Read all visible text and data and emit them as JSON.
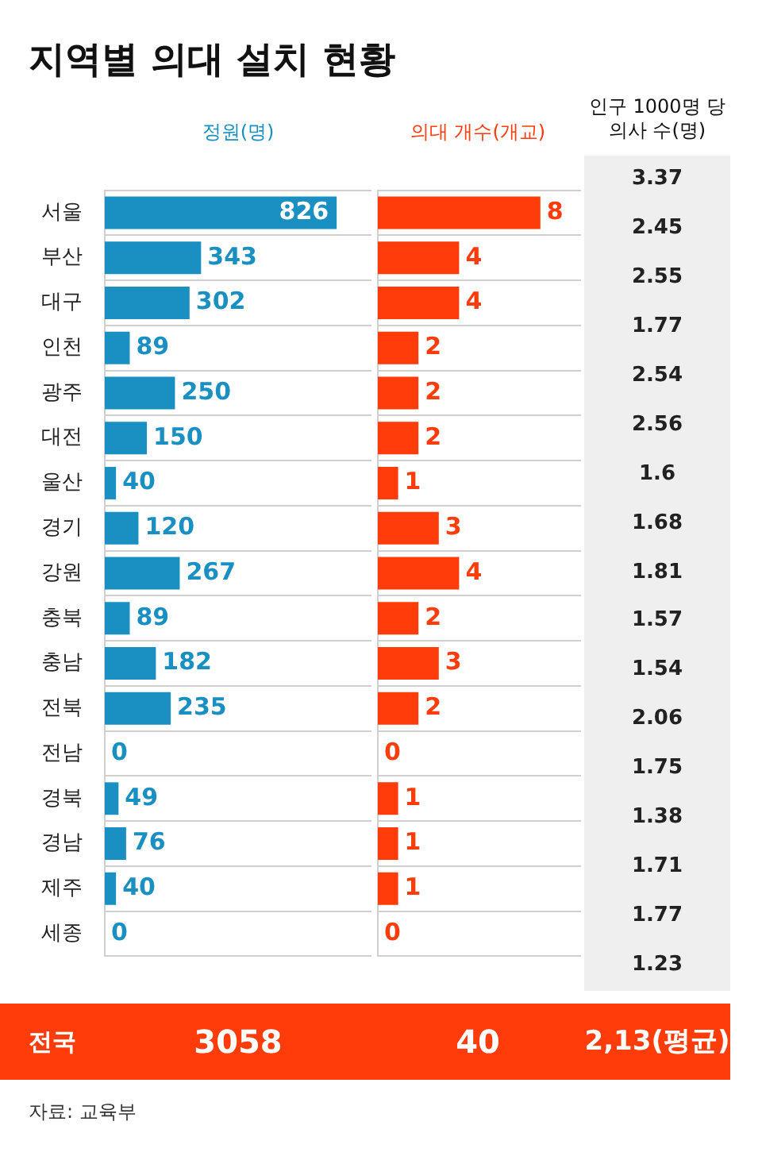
{
  "chart_data": [
    {
      "type": "bar",
      "orientation": "horizontal",
      "title": "지역별 의대 설치 현황",
      "subtitle": "정원(명)",
      "categories": [
        "서울",
        "부산",
        "대구",
        "인천",
        "광주",
        "대전",
        "울산",
        "경기",
        "강원",
        "충북",
        "충남",
        "전북",
        "전남",
        "경북",
        "경남",
        "제주",
        "세종"
      ],
      "values": [
        826,
        343,
        302,
        89,
        250,
        150,
        40,
        120,
        267,
        89,
        182,
        235,
        0,
        49,
        76,
        40,
        0
      ],
      "color": "#1a8fc2",
      "xlim": [
        0,
        950
      ],
      "data_labels": true,
      "grid": "y",
      "legend": false,
      "annotations": [
        "전국",
        "3058",
        "자료: 교육부"
      ]
    },
    {
      "type": "bar",
      "orientation": "horizontal",
      "title": "의대 개수(개교)",
      "categories": [
        null,
        null,
        null,
        null,
        null,
        null,
        null,
        null,
        null,
        null,
        null,
        null,
        null,
        null,
        null,
        null,
        null
      ],
      "values": [
        8,
        4,
        4,
        2,
        2,
        2,
        1,
        3,
        4,
        2,
        3,
        2,
        0,
        1,
        1,
        1,
        0
      ],
      "color": "#ff3c0a",
      "xlim": [
        0,
        10
      ],
      "data_labels": true,
      "grid": "y",
      "legend": false,
      "annotations": [
        "40"
      ]
    },
    {
      "type": "other",
      "title": "인구 1000명 당\n의사 수(명)",
      "values": [
        3.37,
        2.45,
        2.55,
        1.77,
        2.54,
        2.56,
        1.6,
        1.68,
        1.81,
        1.57,
        1.54,
        2.06,
        1.75,
        1.38,
        1.71,
        1.77,
        1.23
      ],
      "data_labels": true,
      "annotations": [
        "2,13(평균)"
      ]
    }
  ]
}
